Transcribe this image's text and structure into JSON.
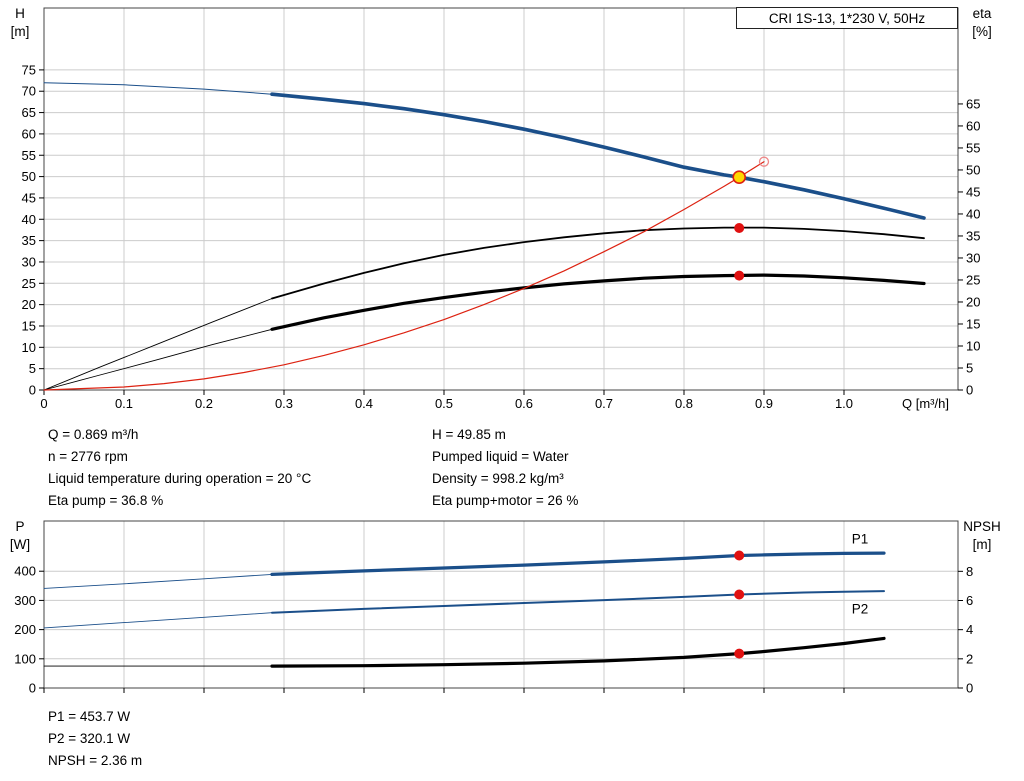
{
  "title_box": {
    "label": "CRI 1S-13, 1*230 V, 50Hz"
  },
  "annotations": {
    "left": [
      "Q = 0.869 m³/h",
      "n = 2776 rpm",
      "Liquid temperature during operation = 20 °C",
      "Eta pump = 36.8 %"
    ],
    "right": [
      "H = 49.85 m",
      "Pumped liquid = Water",
      "Density = 998.2 kg/m³",
      "Eta pump+motor = 26 %"
    ]
  },
  "results": [
    "P1 = 453.7 W",
    "P2 = 320.1 W",
    "NPSH = 2.36 m"
  ],
  "colors": {
    "curve_blue": "#1b4f8a",
    "curve_black": "#000000",
    "curve_red": "#dd2211",
    "marker_red": "#e01010",
    "marker_yellow": "#ffd800",
    "grid_line": "#cccccc",
    "axis_line": "#444444",
    "background": "#ffffff"
  },
  "chart_data": [
    {
      "type": "line",
      "name": "head-eta-chart",
      "x_axis": {
        "label": "Q [m³/h]",
        "range": [
          0,
          1.1425
        ],
        "ticks": [
          0,
          0.1,
          0.2,
          0.3,
          0.4,
          0.5,
          0.6,
          0.7,
          0.8,
          0.9,
          1.0
        ],
        "tick_labels": [
          "0",
          "0.1",
          "0.2",
          "0.3",
          "0.4",
          "0.5",
          "0.6",
          "0.7",
          "0.8",
          "0.9",
          "1.0"
        ],
        "show_tick_labels": true
      },
      "left_axis": {
        "title": [
          "H",
          "[m]"
        ],
        "range": [
          0,
          89.5
        ],
        "ticks": [
          0,
          5,
          10,
          15,
          20,
          25,
          30,
          35,
          40,
          45,
          50,
          55,
          60,
          65,
          70,
          75
        ]
      },
      "right_axis": {
        "title": [
          "eta",
          "[%]"
        ],
        "range": [
          0,
          86.8
        ],
        "ticks": [
          0,
          5,
          10,
          15,
          20,
          25,
          30,
          35,
          40,
          45,
          50,
          55,
          60,
          65
        ]
      },
      "grid": true,
      "legend": "none",
      "series": [
        {
          "name": "eta-pump-curve",
          "axis": "right",
          "color": "#000000",
          "segments": [
            {
              "width": 0.9,
              "points": [
                [
                  0,
                  0
                ],
                [
                  0.07,
                  5.2
                ],
                [
                  0.14,
                  10.3
                ],
                [
                  0.21,
                  15.4
                ],
                [
                  0.285,
                  20.8
                ]
              ]
            },
            {
              "width": 1.8,
              "points": [
                [
                  0.285,
                  20.8
                ],
                [
                  0.35,
                  24.2
                ],
                [
                  0.4,
                  26.6
                ],
                [
                  0.45,
                  28.8
                ],
                [
                  0.5,
                  30.7
                ],
                [
                  0.55,
                  32.3
                ],
                [
                  0.6,
                  33.6
                ],
                [
                  0.65,
                  34.7
                ],
                [
                  0.7,
                  35.6
                ],
                [
                  0.75,
                  36.3
                ],
                [
                  0.8,
                  36.7
                ],
                [
                  0.85,
                  36.9
                ],
                [
                  0.9,
                  36.9
                ],
                [
                  0.95,
                  36.6
                ],
                [
                  1.0,
                  36.1
                ],
                [
                  1.05,
                  35.4
                ],
                [
                  1.1,
                  34.5
                ]
              ]
            }
          ]
        },
        {
          "name": "eta-pump-motor-curve",
          "axis": "right",
          "color": "#000000",
          "segments": [
            {
              "width": 0.9,
              "points": [
                [
                  0,
                  0
                ],
                [
                  0.07,
                  3.4
                ],
                [
                  0.14,
                  6.8
                ],
                [
                  0.21,
                  10.3
                ],
                [
                  0.285,
                  13.8
                ]
              ]
            },
            {
              "width": 3.2,
              "points": [
                [
                  0.285,
                  13.8
                ],
                [
                  0.35,
                  16.4
                ],
                [
                  0.4,
                  18.1
                ],
                [
                  0.45,
                  19.7
                ],
                [
                  0.5,
                  21.0
                ],
                [
                  0.55,
                  22.2
                ],
                [
                  0.6,
                  23.2
                ],
                [
                  0.65,
                  24.1
                ],
                [
                  0.7,
                  24.8
                ],
                [
                  0.75,
                  25.4
                ],
                [
                  0.8,
                  25.8
                ],
                [
                  0.85,
                  26.0
                ],
                [
                  0.9,
                  26.1
                ],
                [
                  0.95,
                  25.9
                ],
                [
                  1.0,
                  25.5
                ],
                [
                  1.05,
                  24.9
                ],
                [
                  1.1,
                  24.2
                ]
              ]
            }
          ]
        },
        {
          "name": "system-curve",
          "axis": "left",
          "color": "#dd2211",
          "segments": [
            {
              "width": 1.2,
              "points": [
                [
                  0,
                  0
                ],
                [
                  0.1,
                  0.7
                ],
                [
                  0.15,
                  1.5
                ],
                [
                  0.2,
                  2.6
                ],
                [
                  0.25,
                  4.1
                ],
                [
                  0.3,
                  5.9
                ],
                [
                  0.35,
                  8.1
                ],
                [
                  0.4,
                  10.6
                ],
                [
                  0.45,
                  13.4
                ],
                [
                  0.5,
                  16.5
                ],
                [
                  0.55,
                  20.0
                ],
                [
                  0.6,
                  23.8
                ],
                [
                  0.65,
                  27.9
                ],
                [
                  0.7,
                  32.4
                ],
                [
                  0.75,
                  37.1
                ],
                [
                  0.8,
                  42.3
                ],
                [
                  0.85,
                  47.7
                ],
                [
                  0.869,
                  49.85
                ],
                [
                  0.9,
                  53.5
                ]
              ]
            }
          ]
        },
        {
          "name": "head-curve",
          "axis": "left",
          "color": "#1b4f8a",
          "segments": [
            {
              "width": 1.0,
              "points": [
                [
                  0,
                  72
                ],
                [
                  0.1,
                  71.5
                ],
                [
                  0.2,
                  70.5
                ],
                [
                  0.285,
                  69.3
                ]
              ]
            },
            {
              "width": 3.6,
              "points": [
                [
                  0.285,
                  69.3
                ],
                [
                  0.35,
                  68.1
                ],
                [
                  0.4,
                  67.1
                ],
                [
                  0.45,
                  65.9
                ],
                [
                  0.5,
                  64.5
                ],
                [
                  0.55,
                  62.9
                ],
                [
                  0.6,
                  61.1
                ],
                [
                  0.65,
                  59.1
                ],
                [
                  0.7,
                  56.9
                ],
                [
                  0.75,
                  54.6
                ],
                [
                  0.8,
                  52.2
                ],
                [
                  0.85,
                  50.4
                ],
                [
                  0.869,
                  49.85
                ],
                [
                  0.9,
                  48.8
                ],
                [
                  0.95,
                  46.9
                ],
                [
                  1.0,
                  44.8
                ],
                [
                  1.05,
                  42.6
                ],
                [
                  1.1,
                  40.3
                ]
              ]
            }
          ]
        }
      ],
      "markers": [
        {
          "name": "system-curve-end-circle",
          "q": 0.9,
          "value": 53.5,
          "axis": "left",
          "r": 4.5,
          "fill": "none",
          "stroke": "#ee8888",
          "stroke_width": 1.3
        },
        {
          "name": "duty-point-eta-pump",
          "q": 0.869,
          "value": 36.8,
          "axis": "right",
          "r": 5,
          "fill": "#e01010"
        },
        {
          "name": "duty-point-eta-pump-motor",
          "q": 0.869,
          "value": 26,
          "axis": "right",
          "r": 5,
          "fill": "#e01010"
        },
        {
          "name": "duty-point-head",
          "q": 0.869,
          "value": 49.85,
          "axis": "left",
          "r": 6,
          "fill": "#ffd800",
          "stroke": "#dd2211",
          "stroke_width": 1.6
        }
      ],
      "curve_labels": []
    },
    {
      "type": "line",
      "name": "power-npsh-chart",
      "x_axis": {
        "label": "",
        "range": [
          0,
          1.1425
        ],
        "ticks": [
          0,
          0.1,
          0.2,
          0.3,
          0.4,
          0.5,
          0.6,
          0.7,
          0.8,
          0.9,
          1.0
        ],
        "tick_labels": [
          "0",
          "0.1",
          "0.2",
          "0.3",
          "0.4",
          "0.5",
          "0.6",
          "0.7",
          "0.8",
          "0.9",
          "1.0"
        ],
        "show_tick_labels": false
      },
      "left_axis": {
        "title": [
          "P",
          "[W]"
        ],
        "range": [
          0,
          572
        ],
        "ticks": [
          0,
          100,
          200,
          300,
          400
        ]
      },
      "right_axis": {
        "title": [
          "NPSH",
          "[m]"
        ],
        "range": [
          0,
          11.45
        ],
        "ticks": [
          0,
          2,
          4,
          6,
          8
        ]
      },
      "grid": true,
      "legend": "none",
      "series": [
        {
          "name": "npsh-curve",
          "axis": "right",
          "color": "#000000",
          "segments": [
            {
              "width": 0.9,
              "points": [
                [
                  0,
                  1.5
                ],
                [
                  0.15,
                  1.5
                ],
                [
                  0.285,
                  1.5
                ]
              ]
            },
            {
              "width": 3.2,
              "points": [
                [
                  0.285,
                  1.5
                ],
                [
                  0.4,
                  1.53
                ],
                [
                  0.5,
                  1.6
                ],
                [
                  0.6,
                  1.7
                ],
                [
                  0.7,
                  1.86
                ],
                [
                  0.8,
                  2.1
                ],
                [
                  0.869,
                  2.36
                ],
                [
                  0.9,
                  2.5
                ],
                [
                  0.95,
                  2.76
                ],
                [
                  1.0,
                  3.05
                ],
                [
                  1.05,
                  3.4
                ]
              ]
            }
          ]
        },
        {
          "name": "p2-curve",
          "axis": "left",
          "color": "#1b4f8a",
          "segments": [
            {
              "width": 0.9,
              "points": [
                [
                  0,
                  206
                ],
                [
                  0.1,
                  224
                ],
                [
                  0.2,
                  242
                ],
                [
                  0.285,
                  258
                ]
              ]
            },
            {
              "width": 2.0,
              "points": [
                [
                  0.285,
                  258
                ],
                [
                  0.4,
                  271
                ],
                [
                  0.5,
                  281
                ],
                [
                  0.6,
                  291
                ],
                [
                  0.7,
                  301
                ],
                [
                  0.8,
                  312
                ],
                [
                  0.869,
                  320.1
                ],
                [
                  0.95,
                  327
                ],
                [
                  1.0,
                  330
                ],
                [
                  1.05,
                  332
                ]
              ]
            }
          ]
        },
        {
          "name": "p1-curve",
          "axis": "left",
          "color": "#1b4f8a",
          "segments": [
            {
              "width": 0.9,
              "points": [
                [
                  0,
                  341
                ],
                [
                  0.1,
                  357
                ],
                [
                  0.2,
                  374
                ],
                [
                  0.285,
                  389
                ]
              ]
            },
            {
              "width": 3.2,
              "points": [
                [
                  0.285,
                  389
                ],
                [
                  0.35,
                  396
                ],
                [
                  0.4,
                  401
                ],
                [
                  0.5,
                  411
                ],
                [
                  0.6,
                  421
                ],
                [
                  0.7,
                  432
                ],
                [
                  0.8,
                  444
                ],
                [
                  0.869,
                  453.7
                ],
                [
                  0.9,
                  456
                ],
                [
                  0.95,
                  459
                ],
                [
                  1.0,
                  461
                ],
                [
                  1.05,
                  462
                ]
              ]
            }
          ]
        }
      ],
      "markers": [
        {
          "name": "duty-point-p1",
          "q": 0.869,
          "value": 453.7,
          "axis": "left",
          "r": 5,
          "fill": "#e01010"
        },
        {
          "name": "duty-point-p2",
          "q": 0.869,
          "value": 320.1,
          "axis": "left",
          "r": 5,
          "fill": "#e01010"
        },
        {
          "name": "duty-point-npsh",
          "q": 0.869,
          "value": 2.36,
          "axis": "right",
          "r": 5,
          "fill": "#e01010"
        }
      ],
      "curve_labels": [
        {
          "text": "P1",
          "q": 1.02,
          "value": 495,
          "axis": "left",
          "color": "#1b4f8a"
        },
        {
          "text": "P2",
          "q": 1.02,
          "value": 256,
          "axis": "left",
          "color": "#1b4f8a"
        }
      ]
    }
  ]
}
